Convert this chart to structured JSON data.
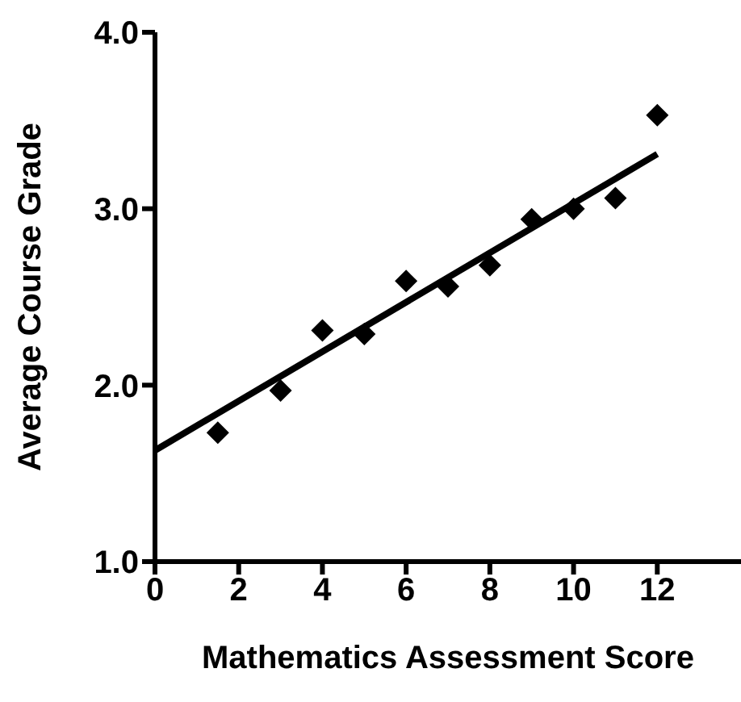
{
  "chart_data": {
    "type": "scatter",
    "xlabel": "Mathematics Assessment Score",
    "ylabel": "Average Course Grade",
    "grid": false,
    "legend": false,
    "series": [
      {
        "color": "#000000",
        "marker": "diamond",
        "x": [
          1.5,
          3,
          4,
          5,
          6,
          7,
          8,
          9,
          10,
          11,
          12
        ],
        "values": [
          1.73,
          1.97,
          2.31,
          2.29,
          2.59,
          2.56,
          2.68,
          2.94,
          3.0,
          3.06,
          3.53
        ]
      },
      {
        "type": "line",
        "color": "#000000",
        "marker": "none",
        "line_style": "solid",
        "x": [
          0,
          12
        ],
        "values": [
          1.63,
          3.31
        ]
      }
    ],
    "xlim": [
      0,
      14
    ],
    "xticks": [
      0,
      2,
      4,
      6,
      8,
      10,
      12
    ],
    "ylim": [
      1,
      4
    ],
    "yticks": [
      {
        "value": 1,
        "label": "1.0"
      },
      {
        "value": 2,
        "label": "2.0"
      },
      {
        "value": 3,
        "label": "3.0"
      },
      {
        "value": 4,
        "label": "4.0"
      }
    ]
  }
}
